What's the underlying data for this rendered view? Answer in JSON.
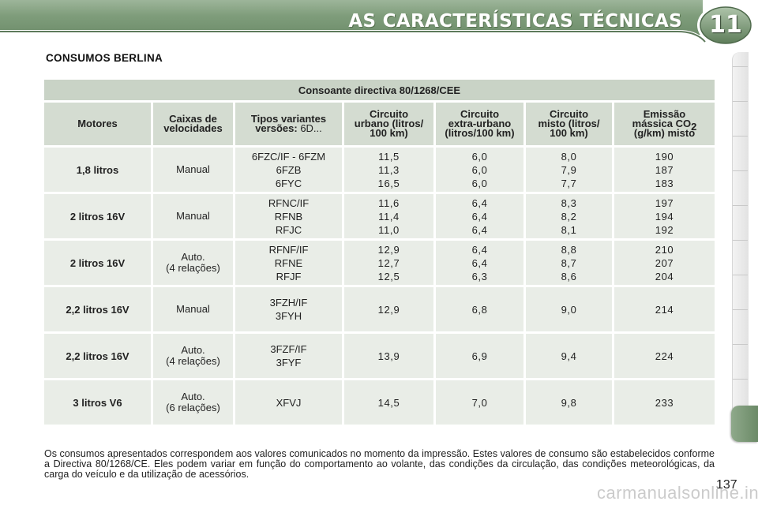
{
  "header": {
    "title": "AS CARACTERÍSTICAS TÉCNICAS",
    "chapter": "11"
  },
  "section": {
    "title": "CONSUMOS BERLINA"
  },
  "table": {
    "directive": "Consoante directiva 80/1268/CEE",
    "columns": {
      "motores": "Motores",
      "caixas": [
        "Caixas de",
        "velocidades"
      ],
      "tipos": [
        "Tipos variantes",
        "versões:",
        "6D..."
      ],
      "urbano": [
        "Circuito",
        "urbano (litros/",
        "100 km)"
      ],
      "extra": [
        "Circuito",
        "extra-urbano",
        "(litros/100 km)"
      ],
      "misto": [
        "Circuito",
        "misto (litros/",
        "100 km)"
      ],
      "emissao": [
        "Emissão",
        "mássica CO",
        "2",
        "(g/km) misto"
      ]
    },
    "rows": [
      {
        "motor": "1,8 litros",
        "gear": [
          "Manual"
        ],
        "types": [
          "6FZC/IF - 6FZM",
          "6FZB",
          "6FYC"
        ],
        "urbano": [
          "11,5",
          "11,3",
          "16,5"
        ],
        "extra": [
          "6,0",
          "6,0",
          "6,0"
        ],
        "misto": [
          "8,0",
          "7,9",
          "7,7"
        ],
        "co2": [
          "190",
          "187",
          "183"
        ]
      },
      {
        "motor": "2 litros 16V",
        "gear": [
          "Manual"
        ],
        "types": [
          "RFNC/IF",
          "RFNB",
          "RFJC"
        ],
        "urbano": [
          "11,6",
          "11,4",
          "11,0"
        ],
        "extra": [
          "6,4",
          "6,4",
          "6,4"
        ],
        "misto": [
          "8,3",
          "8,2",
          "8,1"
        ],
        "co2": [
          "197",
          "194",
          "192"
        ]
      },
      {
        "motor": "2 litros 16V",
        "gear": [
          "Auto.",
          "(4 relações)"
        ],
        "types": [
          "RFNF/IF",
          "RFNE",
          "RFJF"
        ],
        "urbano": [
          "12,9",
          "12,7",
          "12,5"
        ],
        "extra": [
          "6,4",
          "6,4",
          "6,3"
        ],
        "misto": [
          "8,8",
          "8,7",
          "8,6"
        ],
        "co2": [
          "210",
          "207",
          "204"
        ]
      },
      {
        "motor": "2,2 litros 16V",
        "gear": [
          "Manual"
        ],
        "types": [
          "3FZH/IF",
          "3FYH"
        ],
        "urbano": [
          "12,9"
        ],
        "extra": [
          "6,8"
        ],
        "misto": [
          "9,0"
        ],
        "co2": [
          "214"
        ]
      },
      {
        "motor": "2,2 litros 16V",
        "gear": [
          "Auto.",
          "(4 relações)"
        ],
        "types": [
          "3FZF/IF",
          "3FYF"
        ],
        "urbano": [
          "13,9"
        ],
        "extra": [
          "6,9"
        ],
        "misto": [
          "9,4"
        ],
        "co2": [
          "224"
        ]
      },
      {
        "motor": "3 litros V6",
        "gear": [
          "Auto.",
          "(6 relações)"
        ],
        "types": [
          "XFVJ"
        ],
        "urbano": [
          "14,5"
        ],
        "extra": [
          "7,0"
        ],
        "misto": [
          "9,8"
        ],
        "co2": [
          "233"
        ]
      }
    ]
  },
  "footer": {
    "text": "Os consumos apresentados correspondem aos valores comunicados no momento da impressão. Estes valores de consumo são estabelecidos conforme a Directiva 80/1268/CE. Eles podem variar em função do comportamento ao volante, das condições da circulação, das condições meteorológicas, da carga do veículo e da utilização de acessórios."
  },
  "page_number": "137",
  "watermark": "carmanualsonline.info",
  "colors": {
    "header_green": "#7f9d7b",
    "table_header": "#d4dcd1",
    "table_cell": "#e9ede7"
  }
}
